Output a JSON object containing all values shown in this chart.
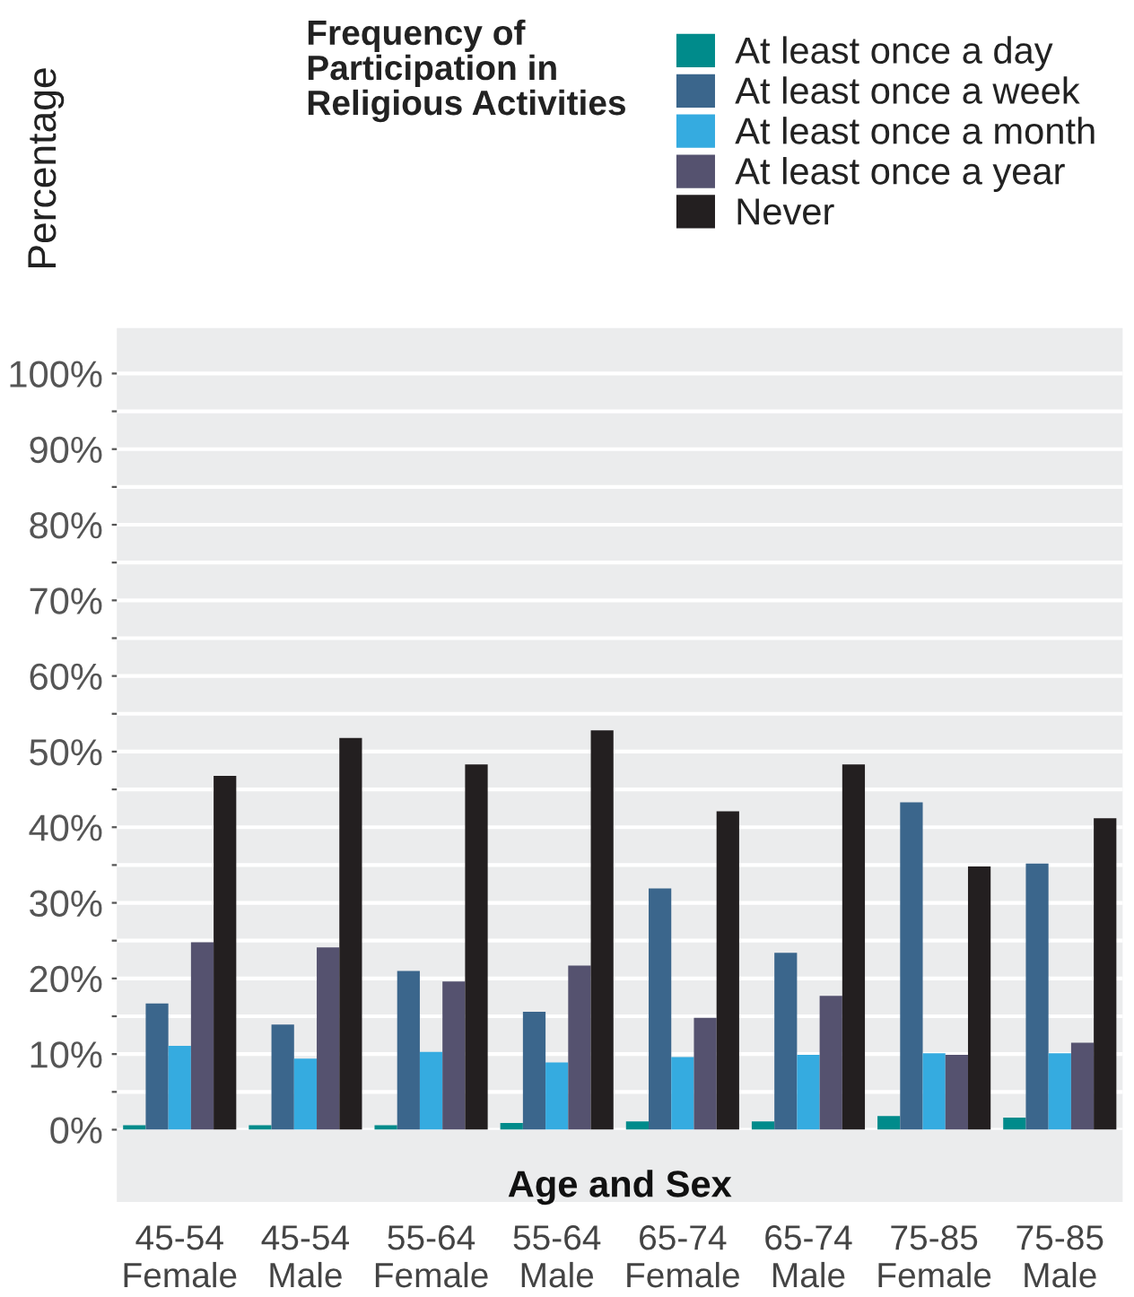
{
  "chart_data": {
    "type": "bar",
    "legend_title": "Frequency of\nParticipation in\nReligious Activities",
    "ylabel": "Percentage",
    "xlabel": "Age and Sex",
    "categories": [
      "45-54\nFemale",
      "45-54\nMale",
      "55-64\nFemale",
      "55-64\nMale",
      "65-74\nFemale",
      "65-74\nMale",
      "75-85\nFemale",
      "75-85\nMale"
    ],
    "series": [
      {
        "name": "At least once a day",
        "color": "#008b8b",
        "values": [
          0.6,
          0.6,
          0.6,
          0.9,
          1.1,
          1.1,
          1.8,
          1.6
        ]
      },
      {
        "name": "At least once a week",
        "color": "#3b668c",
        "values": [
          16.7,
          13.9,
          21.0,
          15.6,
          31.9,
          23.4,
          43.3,
          35.2
        ]
      },
      {
        "name": "At least once a month",
        "color": "#35abe0",
        "values": [
          11.1,
          9.4,
          10.3,
          8.9,
          9.6,
          9.9,
          10.1,
          10.1
        ]
      },
      {
        "name": "At least once a year",
        "color": "#55526f",
        "values": [
          24.8,
          24.1,
          19.6,
          21.7,
          14.8,
          17.7,
          9.9,
          11.5
        ]
      },
      {
        "name": "Never",
        "color": "#231f20",
        "values": [
          46.8,
          51.8,
          48.3,
          52.8,
          42.1,
          48.3,
          34.8,
          41.2
        ]
      }
    ],
    "ylim": [
      0,
      106
    ],
    "yticks": [
      {
        "value": 0,
        "label": "0%"
      },
      {
        "value": 5,
        "label": null
      },
      {
        "value": 10,
        "label": "10%"
      },
      {
        "value": 15,
        "label": null
      },
      {
        "value": 20,
        "label": "20%"
      },
      {
        "value": 25,
        "label": null
      },
      {
        "value": 30,
        "label": "30%"
      },
      {
        "value": 35,
        "label": null
      },
      {
        "value": 40,
        "label": "40%"
      },
      {
        "value": 45,
        "label": null
      },
      {
        "value": 50,
        "label": "50%"
      },
      {
        "value": 55,
        "label": null
      },
      {
        "value": 60,
        "label": "60%"
      },
      {
        "value": 65,
        "label": null
      },
      {
        "value": 70,
        "label": "70%"
      },
      {
        "value": 75,
        "label": null
      },
      {
        "value": 80,
        "label": "80%"
      },
      {
        "value": 85,
        "label": null
      },
      {
        "value": 90,
        "label": "90%"
      },
      {
        "value": 95,
        "label": null
      },
      {
        "value": 100,
        "label": "100%"
      }
    ],
    "grid": "y",
    "legend": "top right"
  }
}
